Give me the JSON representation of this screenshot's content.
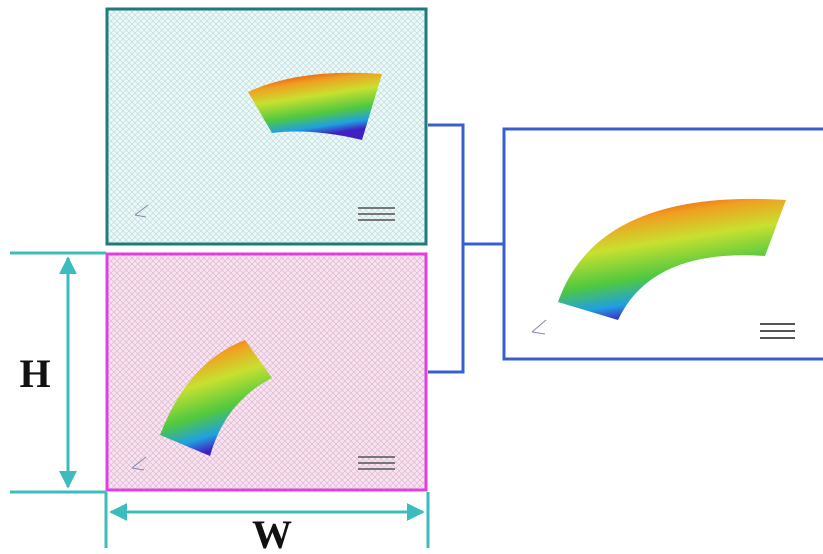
{
  "labels": {
    "height": "H",
    "width": "W"
  }
}
